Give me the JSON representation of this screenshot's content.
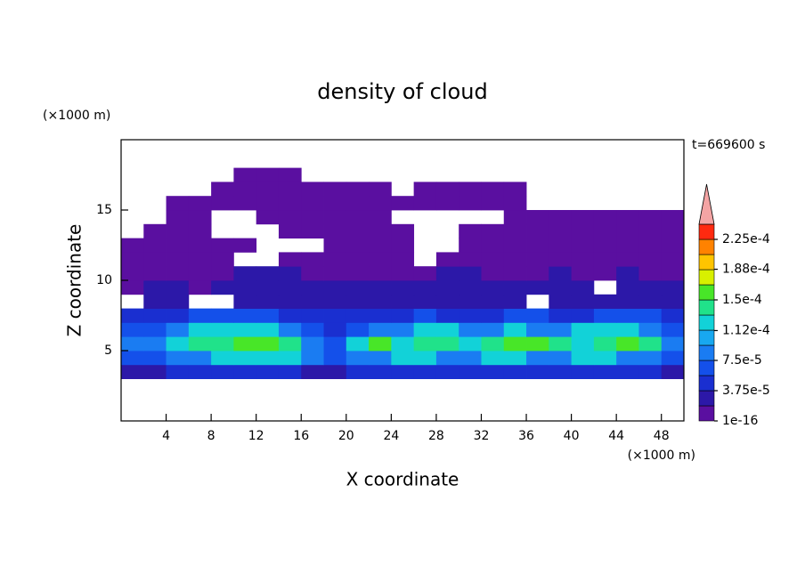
{
  "chart_data": {
    "type": "contour",
    "title": "density of cloud",
    "xlabel": "X coordinate",
    "ylabel": "Z coordinate",
    "xunit": "(×1000 m)",
    "yunit": "(×1000 m)",
    "annotation": "t=669600 s",
    "xlim": [
      0,
      50
    ],
    "ylim": [
      0,
      20
    ],
    "xticks": [
      4,
      8,
      12,
      16,
      20,
      24,
      28,
      32,
      36,
      40,
      44,
      48
    ],
    "yticks": [
      5,
      10,
      15
    ],
    "field": {
      "x": [
        1,
        3,
        5,
        7,
        9,
        11,
        13,
        15,
        17,
        19,
        21,
        23,
        25,
        27,
        29,
        31,
        33,
        35,
        37,
        39,
        41,
        43,
        45,
        47,
        49
      ],
      "z": [
        3.5,
        4.5,
        5.5,
        6.5,
        7.5,
        8.5,
        9.5,
        10.5,
        11.5,
        12.5,
        13.5,
        14.5,
        15.5,
        16.5,
        17.5
      ],
      "values": [
        [
          2.5e-05,
          2.5e-05,
          4.5e-05,
          4.5e-05,
          4.5e-05,
          4.5e-05,
          4.5e-05,
          4.5e-05,
          2.5e-05,
          2.5e-05,
          4.5e-05,
          4.5e-05,
          4.5e-05,
          4.5e-05,
          4.5e-05,
          4.5e-05,
          4.5e-05,
          4.5e-05,
          4.5e-05,
          4.5e-05,
          4.5e-05,
          4.5e-05,
          4.5e-05,
          4.5e-05,
          2.5e-05
        ],
        [
          6.5e-05,
          6.5e-05,
          9e-05,
          9e-05,
          0.00012,
          0.00012,
          0.00012,
          0.00012,
          9e-05,
          6.5e-05,
          9e-05,
          9e-05,
          0.00012,
          0.00012,
          9e-05,
          9e-05,
          0.00012,
          0.00012,
          9e-05,
          9e-05,
          0.00012,
          0.00012,
          9e-05,
          9e-05,
          6.5e-05
        ],
        [
          9e-05,
          9e-05,
          0.00012,
          0.00014,
          0.00014,
          0.00016,
          0.00016,
          0.00014,
          9e-05,
          6.5e-05,
          0.00012,
          0.00016,
          0.00012,
          0.00014,
          0.00014,
          0.00012,
          0.00014,
          0.00016,
          0.00016,
          0.00014,
          0.00012,
          0.00014,
          0.00016,
          0.00014,
          9e-05
        ],
        [
          6.5e-05,
          6.5e-05,
          9e-05,
          0.00012,
          0.00012,
          0.00012,
          0.00012,
          9e-05,
          6.5e-05,
          4.5e-05,
          6.5e-05,
          9e-05,
          9e-05,
          0.00012,
          0.00012,
          9e-05,
          9e-05,
          0.00012,
          9e-05,
          9e-05,
          0.00012,
          0.00012,
          0.00012,
          9e-05,
          6.5e-05
        ],
        [
          4.5e-05,
          4.5e-05,
          4.5e-05,
          6.5e-05,
          6.5e-05,
          6.5e-05,
          6.5e-05,
          4.5e-05,
          4.5e-05,
          4.5e-05,
          4.5e-05,
          4.5e-05,
          4.5e-05,
          6.5e-05,
          4.5e-05,
          4.5e-05,
          4.5e-05,
          6.5e-05,
          6.5e-05,
          4.5e-05,
          4.5e-05,
          6.5e-05,
          6.5e-05,
          6.5e-05,
          4.5e-05
        ],
        [
          null,
          2.5e-05,
          2.5e-05,
          null,
          null,
          2.5e-05,
          2.5e-05,
          2.5e-05,
          2.5e-05,
          2.5e-05,
          2.5e-05,
          2.5e-05,
          2.5e-05,
          2.5e-05,
          2.5e-05,
          2.5e-05,
          2.5e-05,
          2.5e-05,
          null,
          2.5e-05,
          2.5e-05,
          2.5e-05,
          2.5e-05,
          2.5e-05,
          2.5e-05
        ],
        [
          5e-06,
          2.5e-05,
          2.5e-05,
          5e-06,
          2.5e-05,
          2.5e-05,
          2.5e-05,
          2.5e-05,
          2.5e-05,
          2.5e-05,
          2.5e-05,
          2.5e-05,
          2.5e-05,
          2.5e-05,
          2.5e-05,
          2.5e-05,
          2.5e-05,
          2.5e-05,
          2.5e-05,
          2.5e-05,
          2.5e-05,
          null,
          2.5e-05,
          2.5e-05,
          2.5e-05
        ],
        [
          5e-06,
          5e-06,
          5e-06,
          5e-06,
          5e-06,
          2.5e-05,
          2.5e-05,
          2.5e-05,
          5e-06,
          5e-06,
          5e-06,
          5e-06,
          5e-06,
          5e-06,
          2.5e-05,
          2.5e-05,
          5e-06,
          5e-06,
          5e-06,
          2.5e-05,
          5e-06,
          5e-06,
          2.5e-05,
          5e-06,
          5e-06
        ],
        [
          5e-06,
          5e-06,
          5e-06,
          5e-06,
          5e-06,
          null,
          null,
          5e-06,
          5e-06,
          5e-06,
          5e-06,
          5e-06,
          5e-06,
          null,
          5e-06,
          5e-06,
          5e-06,
          5e-06,
          5e-06,
          5e-06,
          5e-06,
          5e-06,
          5e-06,
          5e-06,
          5e-06
        ],
        [
          5e-06,
          5e-06,
          5e-06,
          5e-06,
          5e-06,
          5e-06,
          null,
          null,
          null,
          5e-06,
          5e-06,
          5e-06,
          5e-06,
          null,
          null,
          5e-06,
          5e-06,
          5e-06,
          5e-06,
          5e-06,
          5e-06,
          5e-06,
          5e-06,
          5e-06,
          5e-06
        ],
        [
          null,
          5e-06,
          5e-06,
          5e-06,
          null,
          null,
          null,
          5e-06,
          5e-06,
          5e-06,
          5e-06,
          5e-06,
          5e-06,
          null,
          null,
          5e-06,
          5e-06,
          5e-06,
          5e-06,
          5e-06,
          5e-06,
          5e-06,
          5e-06,
          5e-06,
          5e-06
        ],
        [
          null,
          null,
          5e-06,
          5e-06,
          null,
          null,
          5e-06,
          5e-06,
          5e-06,
          5e-06,
          5e-06,
          5e-06,
          null,
          null,
          null,
          null,
          null,
          5e-06,
          5e-06,
          5e-06,
          5e-06,
          5e-06,
          5e-06,
          5e-06,
          5e-06
        ],
        [
          null,
          null,
          5e-06,
          5e-06,
          5e-06,
          5e-06,
          5e-06,
          5e-06,
          5e-06,
          5e-06,
          5e-06,
          5e-06,
          5e-06,
          5e-06,
          5e-06,
          5e-06,
          5e-06,
          5e-06,
          null,
          null,
          null,
          null,
          null,
          null,
          null
        ],
        [
          null,
          null,
          null,
          null,
          5e-06,
          5e-06,
          5e-06,
          5e-06,
          5e-06,
          5e-06,
          5e-06,
          5e-06,
          null,
          5e-06,
          5e-06,
          5e-06,
          5e-06,
          5e-06,
          null,
          null,
          null,
          null,
          null,
          null,
          null
        ],
        [
          null,
          null,
          null,
          null,
          null,
          5e-06,
          5e-06,
          5e-06,
          null,
          null,
          null,
          null,
          null,
          null,
          null,
          null,
          null,
          null,
          null,
          null,
          null,
          null,
          null,
          null,
          null
        ]
      ]
    },
    "colorbar": {
      "levels": [
        1e-16,
        1.875e-05,
        3.75e-05,
        5.625e-05,
        7.5e-05,
        9.375e-05,
        0.0001125,
        0.00013125,
        0.00015,
        0.00016875,
        0.0001875,
        0.00020625,
        0.000225,
        0.00024375
      ],
      "colors": [
        "#5a0fa0",
        "#2c18a8",
        "#1a2fd0",
        "#1450ea",
        "#1a7cf2",
        "#18a8f0",
        "#12d2d8",
        "#20e28a",
        "#48e628",
        "#d8f000",
        "#ffc400",
        "#ff8200",
        "#ff2a10"
      ],
      "extend_color": "#f4a4a4",
      "ticks": [
        1e-16,
        {
          "value": 3.75e-05,
          "label": "3.75e-5"
        },
        {
          "value": 7.5e-05,
          "label": "7.5e-5"
        },
        {
          "value": 0.000112,
          "label": "1.12e-4"
        },
        {
          "value": 0.00015,
          "label": "1.5e-4"
        },
        {
          "value": 0.000188,
          "label": "1.88e-4"
        },
        {
          "value": 0.000225,
          "label": "2.25e-4"
        }
      ]
    }
  }
}
